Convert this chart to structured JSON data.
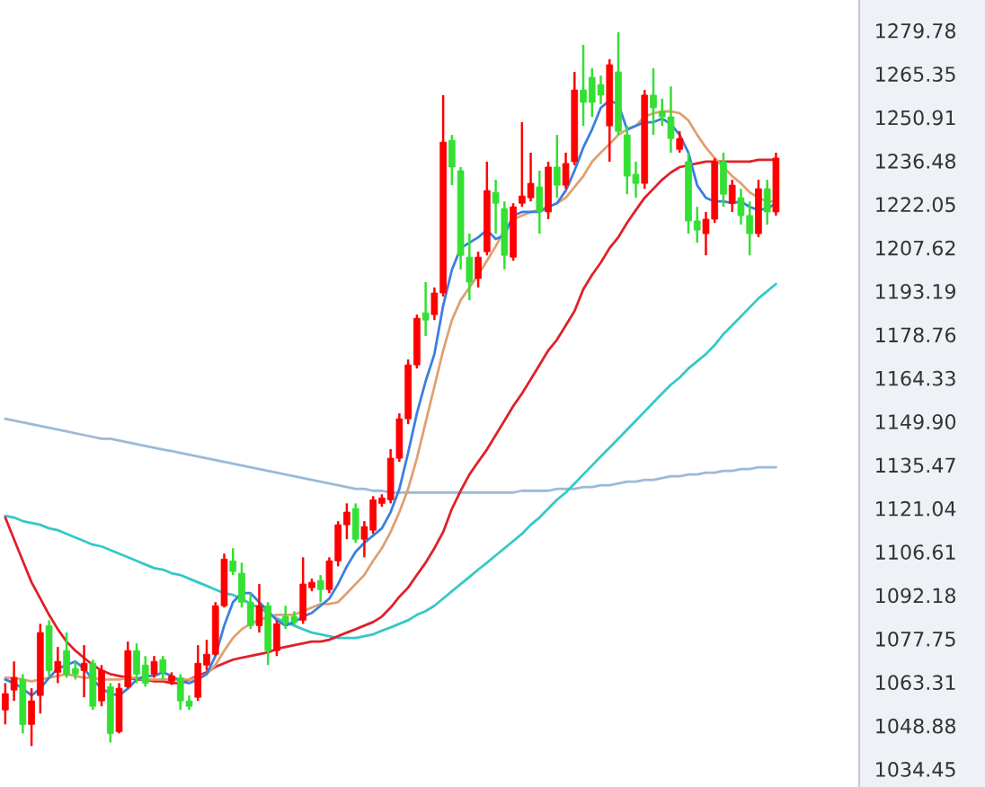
{
  "chart_data": {
    "type": "candlestick",
    "categories": [
      null,
      null,
      null,
      null,
      null,
      null,
      null,
      null,
      null,
      null,
      null,
      null,
      null,
      null,
      null,
      null,
      null,
      null,
      null,
      null,
      null,
      null,
      null,
      null,
      null,
      null,
      null,
      null,
      null,
      null,
      null,
      null,
      null,
      null,
      null,
      null,
      null,
      null,
      null,
      null,
      null,
      null,
      null,
      null,
      null,
      null,
      null,
      null,
      null,
      null,
      null,
      null,
      null,
      null,
      null,
      null,
      null,
      null,
      null,
      null,
      null,
      null,
      null,
      null,
      null,
      null,
      null,
      null,
      null,
      null,
      null,
      null,
      null,
      null,
      null,
      null,
      null,
      null,
      null,
      null,
      null,
      null,
      null,
      null,
      null,
      null,
      null,
      null,
      null
    ],
    "ylim": [
      1028.5,
      1289.9
    ],
    "yticks": [
      1279.78,
      1265.35,
      1250.91,
      1236.48,
      1222.05,
      1207.62,
      1193.19,
      1178.76,
      1164.33,
      {
        "value": 1149.9,
        "label": "1149.90"
      },
      1135.47,
      1121.04,
      1106.61,
      1092.18,
      1077.75,
      1063.31,
      1048.88,
      1034.45
    ],
    "tick_labels": "y",
    "series": [
      {
        "type": "line",
        "color": "#9bbad6",
        "values": [
          1150.8,
          1150.2,
          1149.6,
          1149.0,
          1148.4,
          1147.8,
          1147.2,
          1146.6,
          1146.0,
          1145.4,
          1144.8,
          1144.2,
          1144.2,
          1143.6,
          1143.0,
          1142.4,
          1141.8,
          1141.2,
          1140.6,
          1140.1,
          1139.5,
          1138.9,
          1138.3,
          1137.7,
          1137.1,
          1136.5,
          1135.9,
          1135.3,
          1134.7,
          1134.1,
          1133.5,
          1132.9,
          1132.3,
          1131.7,
          1131.1,
          1130.5,
          1129.9,
          1129.3,
          1128.7,
          1128.1,
          1127.5,
          1127.5,
          1126.9,
          1126.9,
          1126.3,
          1126.3,
          1126.3,
          1126.3,
          1126.3,
          1126.3,
          1126.3,
          1126.3,
          1126.3,
          1126.3,
          1126.3,
          1126.3,
          1126.3,
          1126.3,
          1126.3,
          1126.9,
          1126.9,
          1126.9,
          1126.9,
          1127.5,
          1127.5,
          1127.5,
          1128.1,
          1128.1,
          1128.7,
          1128.7,
          1129.3,
          1129.9,
          1129.9,
          1130.5,
          1130.5,
          1131.1,
          1131.7,
          1131.7,
          1132.3,
          1132.3,
          1132.9,
          1132.9,
          1133.5,
          1133.5,
          1134.1,
          1134.1,
          1134.7,
          1134.7,
          1134.7
        ]
      },
      {
        "type": "line",
        "color": "#35c8c8",
        "values": [
          1118.6,
          1118.0,
          1116.8,
          1116.2,
          1115.6,
          1114.4,
          1113.8,
          1112.6,
          1111.4,
          1110.2,
          1109.0,
          1108.4,
          1107.2,
          1106.0,
          1104.8,
          1103.6,
          1102.4,
          1101.2,
          1100.7,
          1099.5,
          1098.9,
          1097.7,
          1096.5,
          1095.3,
          1094.1,
          1092.9,
          1092.3,
          1091.1,
          1089.3,
          1088.1,
          1086.3,
          1084.5,
          1083.3,
          1082.1,
          1080.9,
          1079.8,
          1079.2,
          1078.6,
          1078.0,
          1078.0,
          1078.0,
          1078.6,
          1079.2,
          1080.4,
          1081.5,
          1082.7,
          1083.9,
          1085.7,
          1086.9,
          1088.7,
          1091.1,
          1093.5,
          1095.9,
          1098.3,
          1100.7,
          1103.0,
          1105.4,
          1107.8,
          1110.2,
          1112.6,
          1115.6,
          1118.0,
          1121.0,
          1123.9,
          1126.3,
          1129.3,
          1132.3,
          1135.3,
          1138.3,
          1141.2,
          1144.2,
          1147.2,
          1150.2,
          1153.2,
          1156.2,
          1159.2,
          1162.1,
          1164.5,
          1167.5,
          1169.9,
          1172.3,
          1175.3,
          1178.9,
          1181.8,
          1184.8,
          1187.8,
          1190.8,
          1193.2,
          1195.6
        ]
      },
      {
        "type": "line",
        "color": "#e0202a",
        "values": [
          1118.0,
          1110.8,
          1103.6,
          1096.5,
          1091.1,
          1085.7,
          1080.9,
          1076.8,
          1073.8,
          1071.4,
          1069.0,
          1067.2,
          1066.0,
          1065.4,
          1064.8,
          1064.2,
          1064.2,
          1063.6,
          1063.6,
          1063.0,
          1063.0,
          1064.2,
          1065.4,
          1066.6,
          1068.4,
          1069.6,
          1070.8,
          1071.4,
          1072.0,
          1072.6,
          1073.2,
          1074.4,
          1075.0,
          1075.6,
          1076.2,
          1076.8,
          1076.8,
          1077.4,
          1078.6,
          1079.8,
          1080.9,
          1082.1,
          1083.3,
          1085.1,
          1088.1,
          1091.7,
          1094.7,
          1098.9,
          1103.0,
          1107.8,
          1113.2,
          1120.9,
          1126.9,
          1132.3,
          1136.5,
          1140.6,
          1145.4,
          1150.2,
          1155.0,
          1159.2,
          1163.9,
          1168.7,
          1173.5,
          1177.1,
          1181.8,
          1186.6,
          1193.8,
          1198.6,
          1202.7,
          1207.5,
          1211.1,
          1215.9,
          1220.1,
          1224.2,
          1227.2,
          1230.2,
          1232.6,
          1234.4,
          1235.0,
          1235.6,
          1236.2,
          1236.2,
          1236.2,
          1236.2,
          1236.2,
          1236.2,
          1236.8,
          1236.8,
          1236.8
        ]
      },
      {
        "type": "line",
        "color": "#e0a070",
        "values": [
          1064.8,
          1064.8,
          1064.2,
          1063.6,
          1064.2,
          1064.8,
          1065.4,
          1066.0,
          1065.4,
          1064.8,
          1064.8,
          1064.2,
          1064.2,
          1064.2,
          1064.8,
          1064.8,
          1064.2,
          1064.2,
          1064.2,
          1064.2,
          1064.2,
          1064.2,
          1064.8,
          1066.0,
          1069.0,
          1073.8,
          1078.0,
          1080.9,
          1082.7,
          1083.9,
          1085.1,
          1085.7,
          1085.7,
          1085.7,
          1086.9,
          1088.1,
          1089.3,
          1089.3,
          1089.9,
          1092.9,
          1095.9,
          1098.9,
          1103.6,
          1107.8,
          1113.2,
          1119.8,
          1127.5,
          1137.7,
          1149.6,
          1161.5,
          1173.5,
          1183.6,
          1190.2,
          1194.4,
          1198.6,
          1203.3,
          1208.1,
          1213.5,
          1217.1,
          1218.3,
          1219.5,
          1220.1,
          1221.2,
          1222.4,
          1224.2,
          1227.8,
          1231.4,
          1236.2,
          1239.2,
          1242.1,
          1245.1,
          1246.9,
          1248.1,
          1251.1,
          1252.3,
          1252.9,
          1252.9,
          1252.3,
          1249.9,
          1245.1,
          1240.9,
          1237.4,
          1234.4,
          1231.4,
          1229.0,
          1226.0,
          1224.2,
          1223.0,
          1223.0
        ]
      },
      {
        "type": "line",
        "color": "#3a7fe0",
        "values": [
          1064.2,
          1063.0,
          1061.2,
          1058.9,
          1061.2,
          1064.8,
          1067.8,
          1069.0,
          1070.2,
          1067.8,
          1064.2,
          1061.2,
          1059.5,
          1058.9,
          1061.2,
          1064.2,
          1065.4,
          1065.4,
          1066.6,
          1065.4,
          1063.6,
          1063.0,
          1064.2,
          1066.0,
          1072.0,
          1082.1,
          1089.9,
          1092.9,
          1092.9,
          1089.9,
          1086.9,
          1083.9,
          1082.1,
          1083.3,
          1085.1,
          1086.3,
          1088.7,
          1091.1,
          1095.9,
          1101.8,
          1106.6,
          1109.6,
          1112.0,
          1114.4,
          1119.8,
          1127.5,
          1139.5,
          1152.6,
          1163.3,
          1172.3,
          1188.4,
          1200.3,
          1207.5,
          1209.3,
          1211.1,
          1213.5,
          1210.5,
          1211.7,
          1218.3,
          1219.5,
          1219.5,
          1219.5,
          1221.2,
          1222.4,
          1226.6,
          1233.2,
          1240.9,
          1246.9,
          1254.1,
          1256.5,
          1255.3,
          1246.9,
          1248.1,
          1249.3,
          1249.3,
          1250.5,
          1248.7,
          1245.1,
          1239.2,
          1228.4,
          1224.2,
          1223.0,
          1223.0,
          1222.4,
          1223.0,
          1221.2,
          1220.1,
          1220.6,
          1222.4
        ]
      },
      {
        "type": "candlestick",
        "colors": [
          "#ff0000",
          "#ff0000",
          "#33e033",
          "#ff0000",
          "#ff0000",
          "#33e033",
          "#ff0000",
          "#33e033",
          "#33e033",
          "#ff0000",
          "#33e033",
          "#ff0000",
          "#33e033",
          "#ff0000",
          "#ff0000",
          "#33e033",
          "#33e033",
          "#ff0000",
          "#33e033",
          "#ff0000",
          "#33e033",
          "#33e033",
          "#ff0000",
          "#ff0000",
          "#ff0000",
          "#ff0000",
          "#33e033",
          "#33e033",
          "#33e033",
          "#ff0000",
          "#33e033",
          "#ff0000",
          "#33e033",
          "#33e033",
          "#ff0000",
          "#ff0000",
          "#33e033",
          "#ff0000",
          "#ff0000",
          "#ff0000",
          "#33e033",
          "#ff0000",
          "#ff0000",
          "#ff0000",
          "#ff0000",
          "#ff0000",
          "#ff0000",
          "#ff0000",
          "#33e033",
          "#ff0000",
          "#ff0000",
          "#33e033",
          "#33e033",
          "#33e033",
          "#ff0000",
          "#ff0000",
          "#33e033",
          "#33e033",
          "#ff0000",
          "#ff0000",
          "#ff0000",
          "#33e033",
          "#ff0000",
          "#33e033",
          "#ff0000",
          "#ff0000",
          "#33e033",
          "#33e033",
          "#33e033",
          "#ff0000",
          "#33e033",
          "#33e033",
          "#33e033",
          "#ff0000",
          "#33e033",
          "#33e033",
          "#33e033",
          "#ff0000",
          "#33e033",
          "#33e033",
          "#ff0000",
          "#ff0000",
          "#33e033",
          "#ff0000",
          "#33e033",
          "#33e033",
          "#ff0000",
          "#33e033",
          "#ff0000"
        ],
        "ohlc": [
          [
            1054.1,
            1063.0,
            1049.3,
            1059.5
          ],
          [
            1060.7,
            1070.2,
            1057.1,
            1064.8
          ],
          [
            1064.2,
            1066.0,
            1046.3,
            1049.3
          ],
          [
            1049.3,
            1061.3,
            1042.1,
            1057.1
          ],
          [
            1058.9,
            1082.7,
            1052.9,
            1079.8
          ],
          [
            1082.1,
            1083.9,
            1065.4,
            1067.2
          ],
          [
            1066.6,
            1075.0,
            1063.0,
            1070.2
          ],
          [
            1073.8,
            1079.8,
            1064.8,
            1066.0
          ],
          [
            1067.8,
            1070.2,
            1064.2,
            1066.0
          ],
          [
            1067.2,
            1075.6,
            1058.3,
            1069.6
          ],
          [
            1069.6,
            1070.8,
            1054.1,
            1055.3
          ],
          [
            1057.1,
            1069.0,
            1055.3,
            1067.2
          ],
          [
            1061.8,
            1063.0,
            1043.3,
            1046.3
          ],
          [
            1046.9,
            1063.0,
            1046.3,
            1061.3
          ],
          [
            1061.8,
            1076.8,
            1061.3,
            1073.8
          ],
          [
            1073.8,
            1076.2,
            1063.0,
            1066.0
          ],
          [
            1069.0,
            1072.0,
            1061.8,
            1063.0
          ],
          [
            1066.0,
            1072.0,
            1064.8,
            1070.2
          ],
          [
            1070.8,
            1072.0,
            1064.2,
            1066.6
          ],
          [
            1063.6,
            1066.6,
            1062.4,
            1065.4
          ],
          [
            1064.8,
            1066.0,
            1054.1,
            1057.1
          ],
          [
            1057.1,
            1058.9,
            1054.1,
            1055.3
          ],
          [
            1058.3,
            1075.6,
            1057.1,
            1069.6
          ],
          [
            1069.0,
            1077.4,
            1067.2,
            1072.6
          ],
          [
            1072.6,
            1089.9,
            1072.0,
            1088.7
          ],
          [
            1088.7,
            1106.0,
            1088.1,
            1104.2
          ],
          [
            1103.6,
            1107.8,
            1098.9,
            1100.1
          ],
          [
            1099.5,
            1103.0,
            1088.1,
            1089.9
          ],
          [
            1089.9,
            1092.9,
            1081.0,
            1082.1
          ],
          [
            1082.1,
            1095.9,
            1079.8,
            1088.7
          ],
          [
            1088.7,
            1089.9,
            1069.0,
            1073.8
          ],
          [
            1073.8,
            1083.9,
            1072.0,
            1082.7
          ],
          [
            1085.1,
            1088.7,
            1081.0,
            1083.3
          ],
          [
            1085.1,
            1086.9,
            1082.1,
            1083.3
          ],
          [
            1083.9,
            1104.8,
            1082.7,
            1095.9
          ],
          [
            1094.7,
            1097.7,
            1093.5,
            1096.5
          ],
          [
            1097.1,
            1098.9,
            1089.9,
            1094.1
          ],
          [
            1094.1,
            1104.8,
            1092.9,
            1103.6
          ],
          [
            1103.6,
            1116.8,
            1101.8,
            1115.6
          ],
          [
            1115.6,
            1122.7,
            1110.8,
            1119.8
          ],
          [
            1121.0,
            1122.7,
            1109.6,
            1110.8
          ],
          [
            1110.8,
            1116.8,
            1104.8,
            1115.0
          ],
          [
            1113.8,
            1125.1,
            1112.6,
            1123.9
          ],
          [
            1122.7,
            1125.7,
            1121.6,
            1124.5
          ],
          [
            1123.9,
            1140.7,
            1122.7,
            1137.7
          ],
          [
            1137.7,
            1152.6,
            1136.5,
            1150.8
          ],
          [
            1150.8,
            1170.5,
            1149.0,
            1168.7
          ],
          [
            1168.7,
            1185.4,
            1167.5,
            1184.2
          ],
          [
            1186.0,
            1196.2,
            1178.3,
            1183.6
          ],
          [
            1185.4,
            1194.4,
            1183.6,
            1192.6
          ],
          [
            1192.6,
            1258.3,
            1191.4,
            1242.7
          ],
          [
            1243.3,
            1245.1,
            1228.4,
            1234.4
          ],
          [
            1233.2,
            1234.4,
            1200.4,
            1205.1
          ],
          [
            1204.5,
            1212.3,
            1190.2,
            1196.2
          ],
          [
            1197.4,
            1206.3,
            1194.4,
            1204.5
          ],
          [
            1206.3,
            1236.2,
            1205.1,
            1226.6
          ],
          [
            1226.0,
            1230.2,
            1212.3,
            1222.4
          ],
          [
            1220.6,
            1223.0,
            1200.4,
            1205.1
          ],
          [
            1204.5,
            1222.4,
            1203.3,
            1221.2
          ],
          [
            1222.4,
            1249.3,
            1221.2,
            1224.8
          ],
          [
            1224.2,
            1239.2,
            1223.0,
            1229.0
          ],
          [
            1227.8,
            1233.2,
            1212.3,
            1219.5
          ],
          [
            1219.5,
            1236.2,
            1217.1,
            1234.4
          ],
          [
            1234.4,
            1245.1,
            1224.2,
            1228.4
          ],
          [
            1228.4,
            1239.2,
            1227.2,
            1235.6
          ],
          [
            1236.2,
            1266.0,
            1235.0,
            1260.0
          ],
          [
            1260.0,
            1275.0,
            1248.1,
            1255.9
          ],
          [
            1264.2,
            1267.2,
            1251.1,
            1255.9
          ],
          [
            1261.8,
            1264.8,
            1255.3,
            1258.3
          ],
          [
            1248.1,
            1270.2,
            1236.2,
            1268.4
          ],
          [
            1266.0,
            1279.2,
            1245.1,
            1246.3
          ],
          [
            1245.1,
            1248.1,
            1225.4,
            1231.4
          ],
          [
            1232.0,
            1236.2,
            1224.2,
            1229.0
          ],
          [
            1229.0,
            1260.0,
            1227.2,
            1258.3
          ],
          [
            1258.3,
            1267.2,
            1245.1,
            1254.1
          ],
          [
            1252.9,
            1257.1,
            1248.1,
            1251.1
          ],
          [
            1251.1,
            1261.2,
            1239.2,
            1243.9
          ],
          [
            1240.3,
            1246.3,
            1239.2,
            1243.9
          ],
          [
            1236.2,
            1239.2,
            1212.3,
            1216.5
          ],
          [
            1216.5,
            1221.2,
            1209.3,
            1213.5
          ],
          [
            1212.3,
            1219.5,
            1205.1,
            1217.1
          ],
          [
            1217.1,
            1237.4,
            1215.9,
            1236.2
          ],
          [
            1236.2,
            1239.2,
            1221.2,
            1225.4
          ],
          [
            1222.4,
            1230.2,
            1219.5,
            1228.4
          ],
          [
            1224.2,
            1227.2,
            1215.3,
            1218.3
          ],
          [
            1218.3,
            1223.0,
            1205.1,
            1212.3
          ],
          [
            1212.3,
            1230.2,
            1211.1,
            1227.2
          ],
          [
            1227.2,
            1230.2,
            1215.3,
            1219.5
          ],
          [
            1219.5,
            1239.2,
            1218.3,
            1237.4
          ]
        ]
      }
    ]
  }
}
